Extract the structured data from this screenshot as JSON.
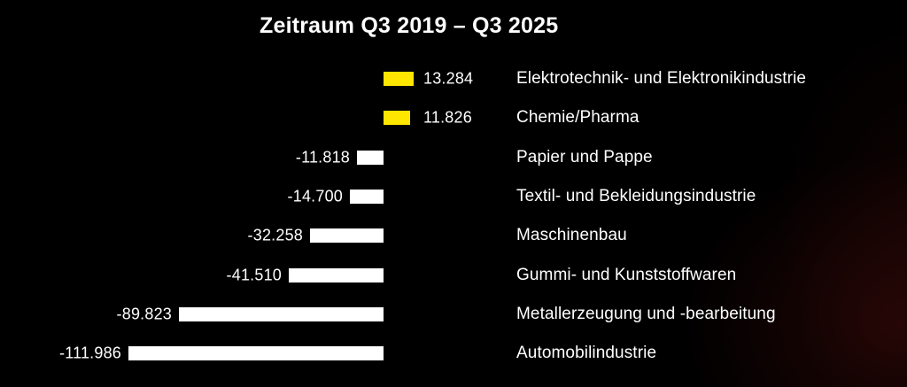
{
  "title": "Zeitraum Q3 2019 – Q3 2025",
  "colors": {
    "background": "#000000",
    "text": "#ffffff",
    "positive_bar": "#FFE600",
    "negative_bar": "#FFFFFF",
    "glow": "#5a0f0e"
  },
  "chart_data": {
    "type": "bar",
    "orientation": "horizontal",
    "title": "Zeitraum Q3 2019 – Q3 2025",
    "categories": [
      "Elektrotechnik- und Elektronikindustrie",
      "Chemie/Pharma",
      "Papier und Pappe",
      "Textil- und Bekleidungsindustrie",
      "Maschinenbau",
      "Gummi- und Kunststoffwaren",
      "Metallerzeugung und -bearbeitung",
      "Automobilindustrie"
    ],
    "values": [
      13284,
      11826,
      -11818,
      -14700,
      -32258,
      -41510,
      -89823,
      -111986
    ],
    "value_labels": [
      "13.284",
      "11.826",
      "-11.818",
      "-14.700",
      "-32.258",
      "-41.510",
      "-89.823",
      "-111.986"
    ],
    "xlim": [
      -120000,
      20000
    ],
    "xlabel": "",
    "ylabel": "",
    "grid": false,
    "legend": "none",
    "positive_color": "#FFE600",
    "negative_color": "#FFFFFF"
  }
}
